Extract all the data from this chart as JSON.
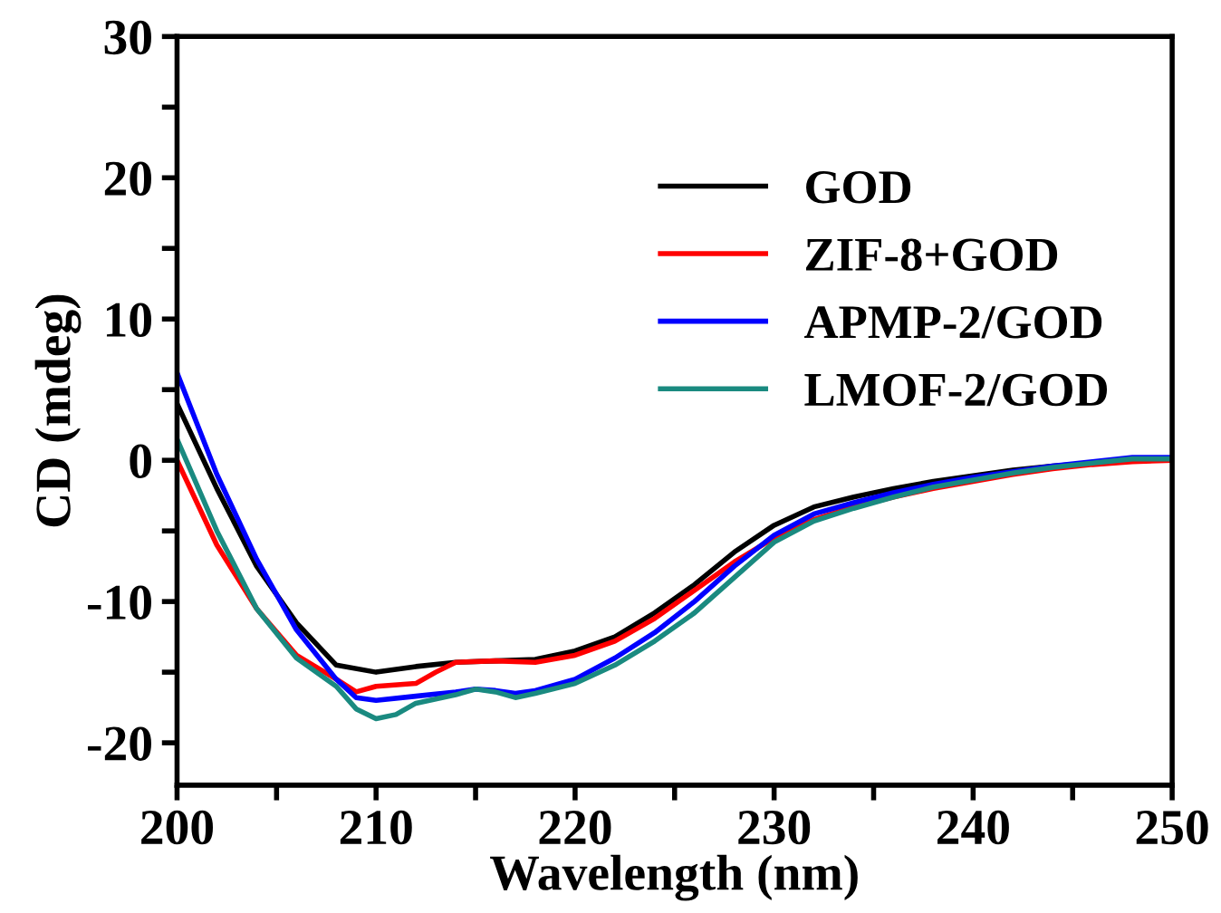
{
  "chart_data": {
    "type": "line",
    "xlabel": "Wavelength (nm)",
    "ylabel": "CD (mdeg)",
    "xlim": [
      200,
      250
    ],
    "ylim": [
      -23,
      30
    ],
    "xticks": [
      200,
      {
        "value": 205,
        "label": null
      },
      210,
      {
        "value": 215,
        "label": null
      },
      220,
      {
        "value": 225,
        "label": null
      },
      230,
      {
        "value": 235,
        "label": null
      },
      240,
      {
        "value": 245,
        "label": null
      },
      250
    ],
    "yticks": [
      -20,
      {
        "value": -15,
        "label": null
      },
      -10,
      {
        "value": -5,
        "label": null
      },
      0,
      {
        "value": 5,
        "label": null
      },
      10,
      {
        "value": 15,
        "label": null
      },
      20,
      {
        "value": 25,
        "label": null
      },
      30
    ],
    "grid": false,
    "legend": "top right",
    "marker": "none",
    "line_style": "solid",
    "series": [
      {
        "name": "GOD",
        "color": "#000000",
        "x": [
          200,
          202,
          204,
          206,
          208,
          210,
          212,
          214,
          216,
          218,
          220,
          222,
          224,
          226,
          228,
          230,
          232,
          234,
          236,
          238,
          240,
          242,
          244,
          246,
          248,
          250
        ],
        "values": [
          4,
          -2,
          -7.5,
          -11.5,
          -14.5,
          -15,
          -14.6,
          -14.3,
          -14.2,
          -14.1,
          -13.5,
          -12.5,
          -10.8,
          -8.8,
          -6.5,
          -4.6,
          -3.3,
          -2.6,
          -2,
          -1.5,
          -1.1,
          -0.7,
          -0.4,
          -0.2,
          0,
          0
        ]
      },
      {
        "name": "ZIF-8+GOD",
        "color": "#ff0000",
        "x": [
          200,
          202,
          204,
          206,
          208,
          209,
          210,
          212,
          213,
          214,
          216,
          218,
          220,
          222,
          224,
          226,
          228,
          230,
          232,
          234,
          236,
          238,
          240,
          242,
          244,
          246,
          248,
          250
        ],
        "values": [
          0,
          -6,
          -10.5,
          -13.8,
          -15.5,
          -16.4,
          -16,
          -15.8,
          -15,
          -14.3,
          -14.2,
          -14.3,
          -13.8,
          -12.8,
          -11.2,
          -9.2,
          -7.2,
          -5.5,
          -4.2,
          -3.3,
          -2.6,
          -2,
          -1.5,
          -1,
          -0.6,
          -0.3,
          -0.1,
          0
        ]
      },
      {
        "name": "APMP-2/GOD",
        "color": "#0000ff",
        "x": [
          200,
          202,
          204,
          206,
          208,
          209,
          210,
          212,
          214,
          215,
          216,
          217,
          218,
          220,
          222,
          224,
          226,
          228,
          230,
          232,
          234,
          236,
          238,
          240,
          242,
          244,
          246,
          248,
          250
        ],
        "values": [
          6.2,
          -1,
          -7,
          -12,
          -15.5,
          -16.8,
          -17,
          -16.7,
          -16.4,
          -16.2,
          -16.3,
          -16.5,
          -16.3,
          -15.5,
          -14,
          -12.2,
          -10,
          -7.5,
          -5.3,
          -3.8,
          -3,
          -2.3,
          -1.7,
          -1.2,
          -0.8,
          -0.4,
          -0.1,
          0.2,
          0.2
        ]
      },
      {
        "name": "LMOF-2/GOD",
        "color": "#1a8a80",
        "x": [
          200,
          202,
          204,
          206,
          208,
          209,
          210,
          211,
          212,
          214,
          215,
          216,
          217,
          218,
          220,
          222,
          224,
          226,
          228,
          230,
          232,
          234,
          236,
          238,
          240,
          242,
          244,
          246,
          248,
          250
        ],
        "values": [
          1.5,
          -5,
          -10.5,
          -14,
          -16,
          -17.6,
          -18.3,
          -18,
          -17.2,
          -16.6,
          -16.2,
          -16.4,
          -16.8,
          -16.5,
          -15.8,
          -14.5,
          -12.8,
          -10.8,
          -8.3,
          -5.8,
          -4.3,
          -3.4,
          -2.6,
          -1.9,
          -1.4,
          -0.9,
          -0.5,
          -0.2,
          0.1,
          0.1
        ]
      }
    ]
  }
}
